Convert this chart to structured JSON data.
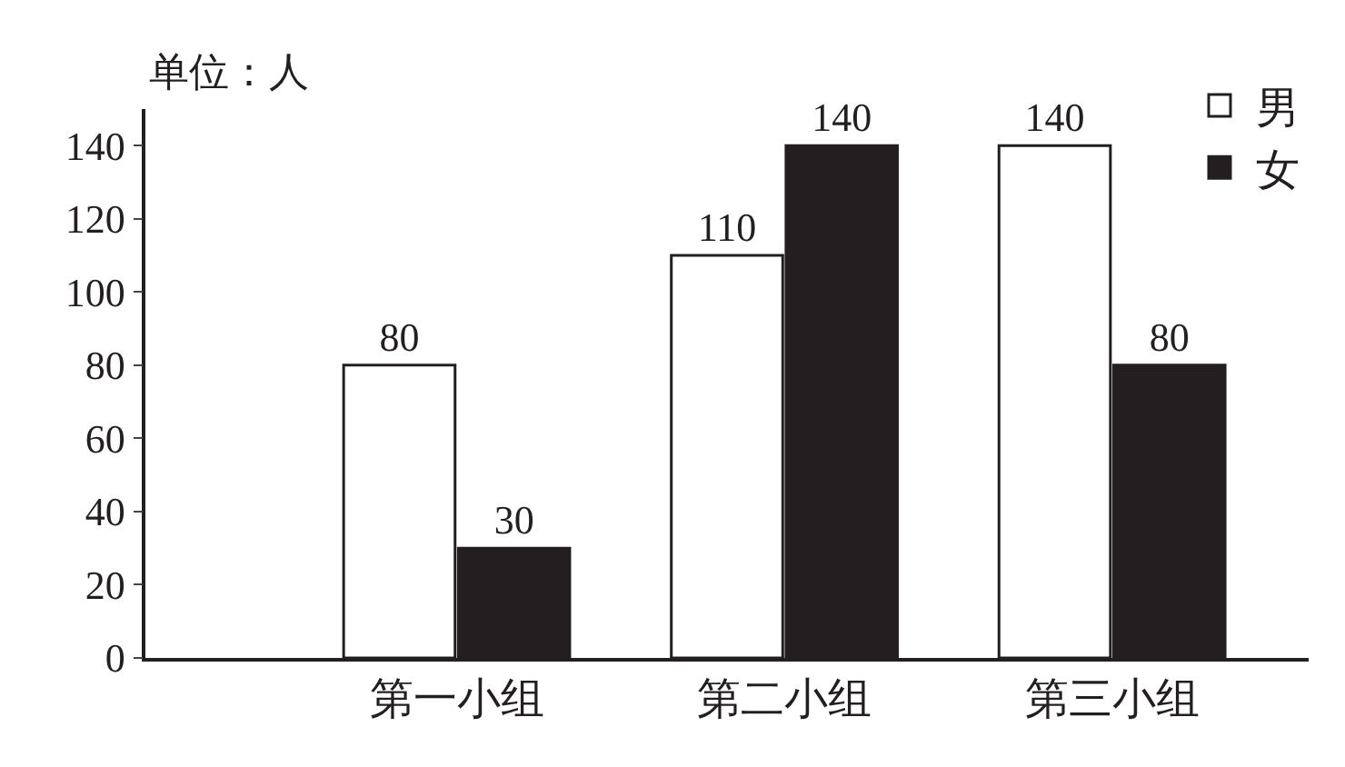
{
  "chart_data": {
    "type": "bar",
    "ylabel": "单位：人",
    "categories": [
      "第一小组",
      "第二小组",
      "第三小组"
    ],
    "series": [
      {
        "name": "男",
        "color": "#ffffff",
        "values": [
          80,
          110,
          140
        ]
      },
      {
        "name": "女",
        "color": "#231f20",
        "values": [
          30,
          140,
          80
        ]
      }
    ],
    "ylim": [
      0,
      150
    ],
    "yticks": [
      0,
      20,
      40,
      60,
      80,
      100,
      120,
      140
    ],
    "data_labels": true,
    "legend": "top right"
  }
}
